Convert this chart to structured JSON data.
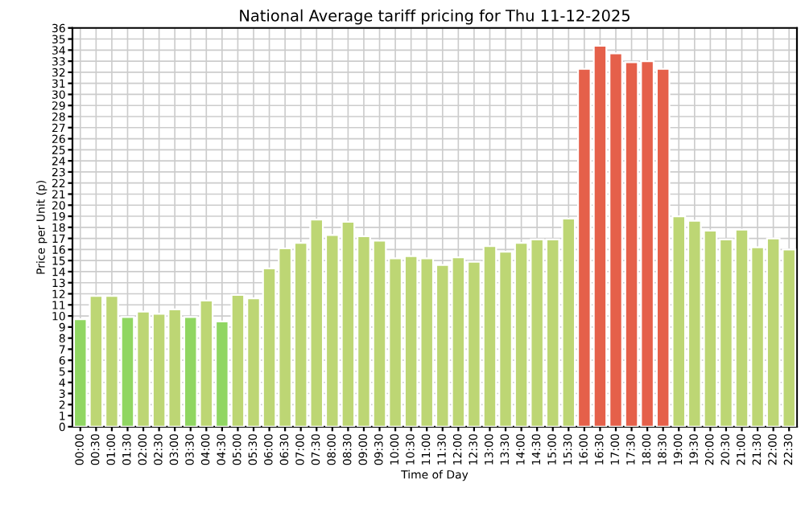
{
  "chart_data": {
    "type": "bar",
    "title": "National Average tariff pricing for Thu 11-12-2025",
    "xlabel": "Time of Day",
    "ylabel": "Price per Unit (p)",
    "categories": [
      "00:00",
      "00:30",
      "01:00",
      "01:30",
      "02:00",
      "02:30",
      "03:00",
      "03:30",
      "04:00",
      "04:30",
      "05:00",
      "05:30",
      "06:00",
      "06:30",
      "07:00",
      "07:30",
      "08:00",
      "08:30",
      "09:00",
      "09:30",
      "10:00",
      "10:30",
      "11:00",
      "11:30",
      "12:00",
      "12:30",
      "13:00",
      "13:30",
      "14:00",
      "14:30",
      "15:00",
      "15:30",
      "16:00",
      "16:30",
      "17:00",
      "17:30",
      "18:00",
      "18:30",
      "19:00",
      "19:30",
      "20:00",
      "20:30",
      "21:00",
      "21:30",
      "22:00",
      "22:30"
    ],
    "values": [
      9.7,
      11.8,
      11.8,
      9.9,
      10.4,
      10.2,
      10.6,
      9.9,
      11.4,
      9.5,
      11.9,
      11.6,
      14.3,
      16.1,
      16.6,
      18.7,
      17.3,
      18.5,
      17.2,
      16.8,
      15.2,
      15.4,
      15.2,
      14.6,
      15.3,
      14.9,
      16.3,
      15.8,
      16.6,
      16.9,
      16.9,
      18.8,
      32.3,
      34.4,
      33.7,
      32.9,
      33.0,
      32.3,
      19.0,
      18.6,
      17.7,
      16.9,
      17.8,
      16.2,
      17.0,
      16.0
    ],
    "colors": [
      "#90d662",
      "#bdd674",
      "#bdd674",
      "#90d662",
      "#bdd674",
      "#bdd674",
      "#bdd674",
      "#90d662",
      "#bdd674",
      "#90d662",
      "#bdd674",
      "#bdd674",
      "#bdd674",
      "#bdd674",
      "#bdd674",
      "#bdd674",
      "#bdd674",
      "#bdd674",
      "#bdd674",
      "#bdd674",
      "#bdd674",
      "#bdd674",
      "#bdd674",
      "#bdd674",
      "#bdd674",
      "#bdd674",
      "#bdd674",
      "#bdd674",
      "#bdd674",
      "#bdd674",
      "#bdd674",
      "#bdd674",
      "#e5604a",
      "#e5604a",
      "#e5604a",
      "#e5604a",
      "#e5604a",
      "#e5604a",
      "#bdd674",
      "#bdd674",
      "#bdd674",
      "#bdd674",
      "#bdd674",
      "#bdd674",
      "#bdd674",
      "#bdd674"
    ],
    "ylim": [
      0,
      36
    ],
    "yticks": [
      0,
      1,
      2,
      3,
      4,
      5,
      6,
      7,
      8,
      9,
      10,
      11,
      12,
      13,
      14,
      15,
      16,
      17,
      18,
      19,
      20,
      21,
      22,
      23,
      24,
      25,
      26,
      27,
      28,
      29,
      30,
      31,
      32,
      33,
      34,
      35,
      36
    ],
    "grid": true
  }
}
